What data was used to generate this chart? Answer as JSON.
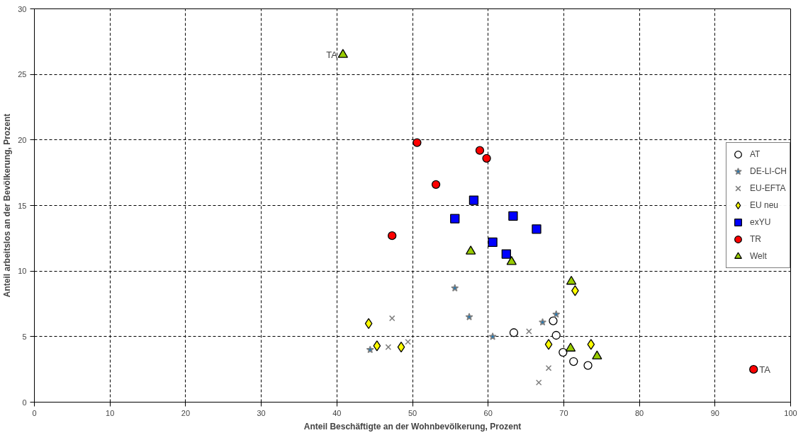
{
  "chart_data": {
    "type": "scatter",
    "xlabel": "Anteil Beschäftigte an der Wohnbevölkerung, Prozent",
    "ylabel": "Anteil arbeitslos an der Bevölkerung, Prozent",
    "xlim": [
      0,
      100
    ],
    "ylim": [
      0,
      30
    ],
    "xticks": [
      0,
      10,
      20,
      30,
      40,
      50,
      60,
      70,
      80,
      90,
      100
    ],
    "yticks": [
      0,
      5,
      10,
      15,
      20,
      25,
      30
    ],
    "grid": true,
    "legend": "right",
    "series": [
      {
        "name": "AT",
        "color": "#ffffff",
        "marker": "circle",
        "x": [
          63.4,
          68.6,
          69.0,
          69.9,
          71.3,
          73.2
        ],
        "values": [
          5.3,
          6.2,
          5.1,
          3.8,
          3.1,
          2.8
        ]
      },
      {
        "name": "DE-LI-CH",
        "color": "#808080",
        "marker": "star",
        "x": [
          44.4,
          55.6,
          57.5,
          60.6,
          67.2,
          69.0
        ],
        "values": [
          4.0,
          8.7,
          6.5,
          5.0,
          6.1,
          6.7
        ]
      },
      {
        "name": "EU-EFTA",
        "color": "#808080",
        "marker": "cross",
        "x": [
          47.3,
          46.8,
          49.4,
          65.4,
          68.0,
          66.7
        ],
        "values": [
          6.4,
          4.2,
          4.6,
          5.4,
          2.6,
          1.5
        ]
      },
      {
        "name": "EU neu",
        "color": "#ffff00",
        "marker": "diamond",
        "x": [
          44.2,
          45.3,
          48.5,
          68.0,
          71.5,
          73.6
        ],
        "values": [
          6.0,
          4.3,
          4.2,
          4.4,
          8.5,
          4.4
        ]
      },
      {
        "name": "exYU",
        "color": "#0000ff",
        "marker": "square",
        "x": [
          55.6,
          58.1,
          60.6,
          62.4,
          63.3,
          66.4
        ],
        "values": [
          14.0,
          15.4,
          12.2,
          11.3,
          14.2,
          13.2
        ]
      },
      {
        "name": "TR",
        "color": "#ff0000",
        "marker": "circle",
        "x": [
          47.3,
          50.6,
          53.1,
          58.9,
          59.8,
          95.1
        ],
        "values": [
          12.7,
          19.8,
          16.6,
          19.2,
          18.6,
          2.5
        ]
      },
      {
        "name": "Welt",
        "color": "#99cc00",
        "marker": "triangle",
        "x": [
          40.8,
          57.7,
          63.1,
          71.0,
          70.9,
          74.4
        ],
        "values": [
          26.5,
          11.5,
          10.7,
          9.2,
          4.1,
          3.5
        ]
      }
    ],
    "annotations": [
      {
        "text": "TA",
        "x": 40.8,
        "y": 26.5
      },
      {
        "text": "TA",
        "x": 95.1,
        "y": 2.5
      }
    ]
  }
}
